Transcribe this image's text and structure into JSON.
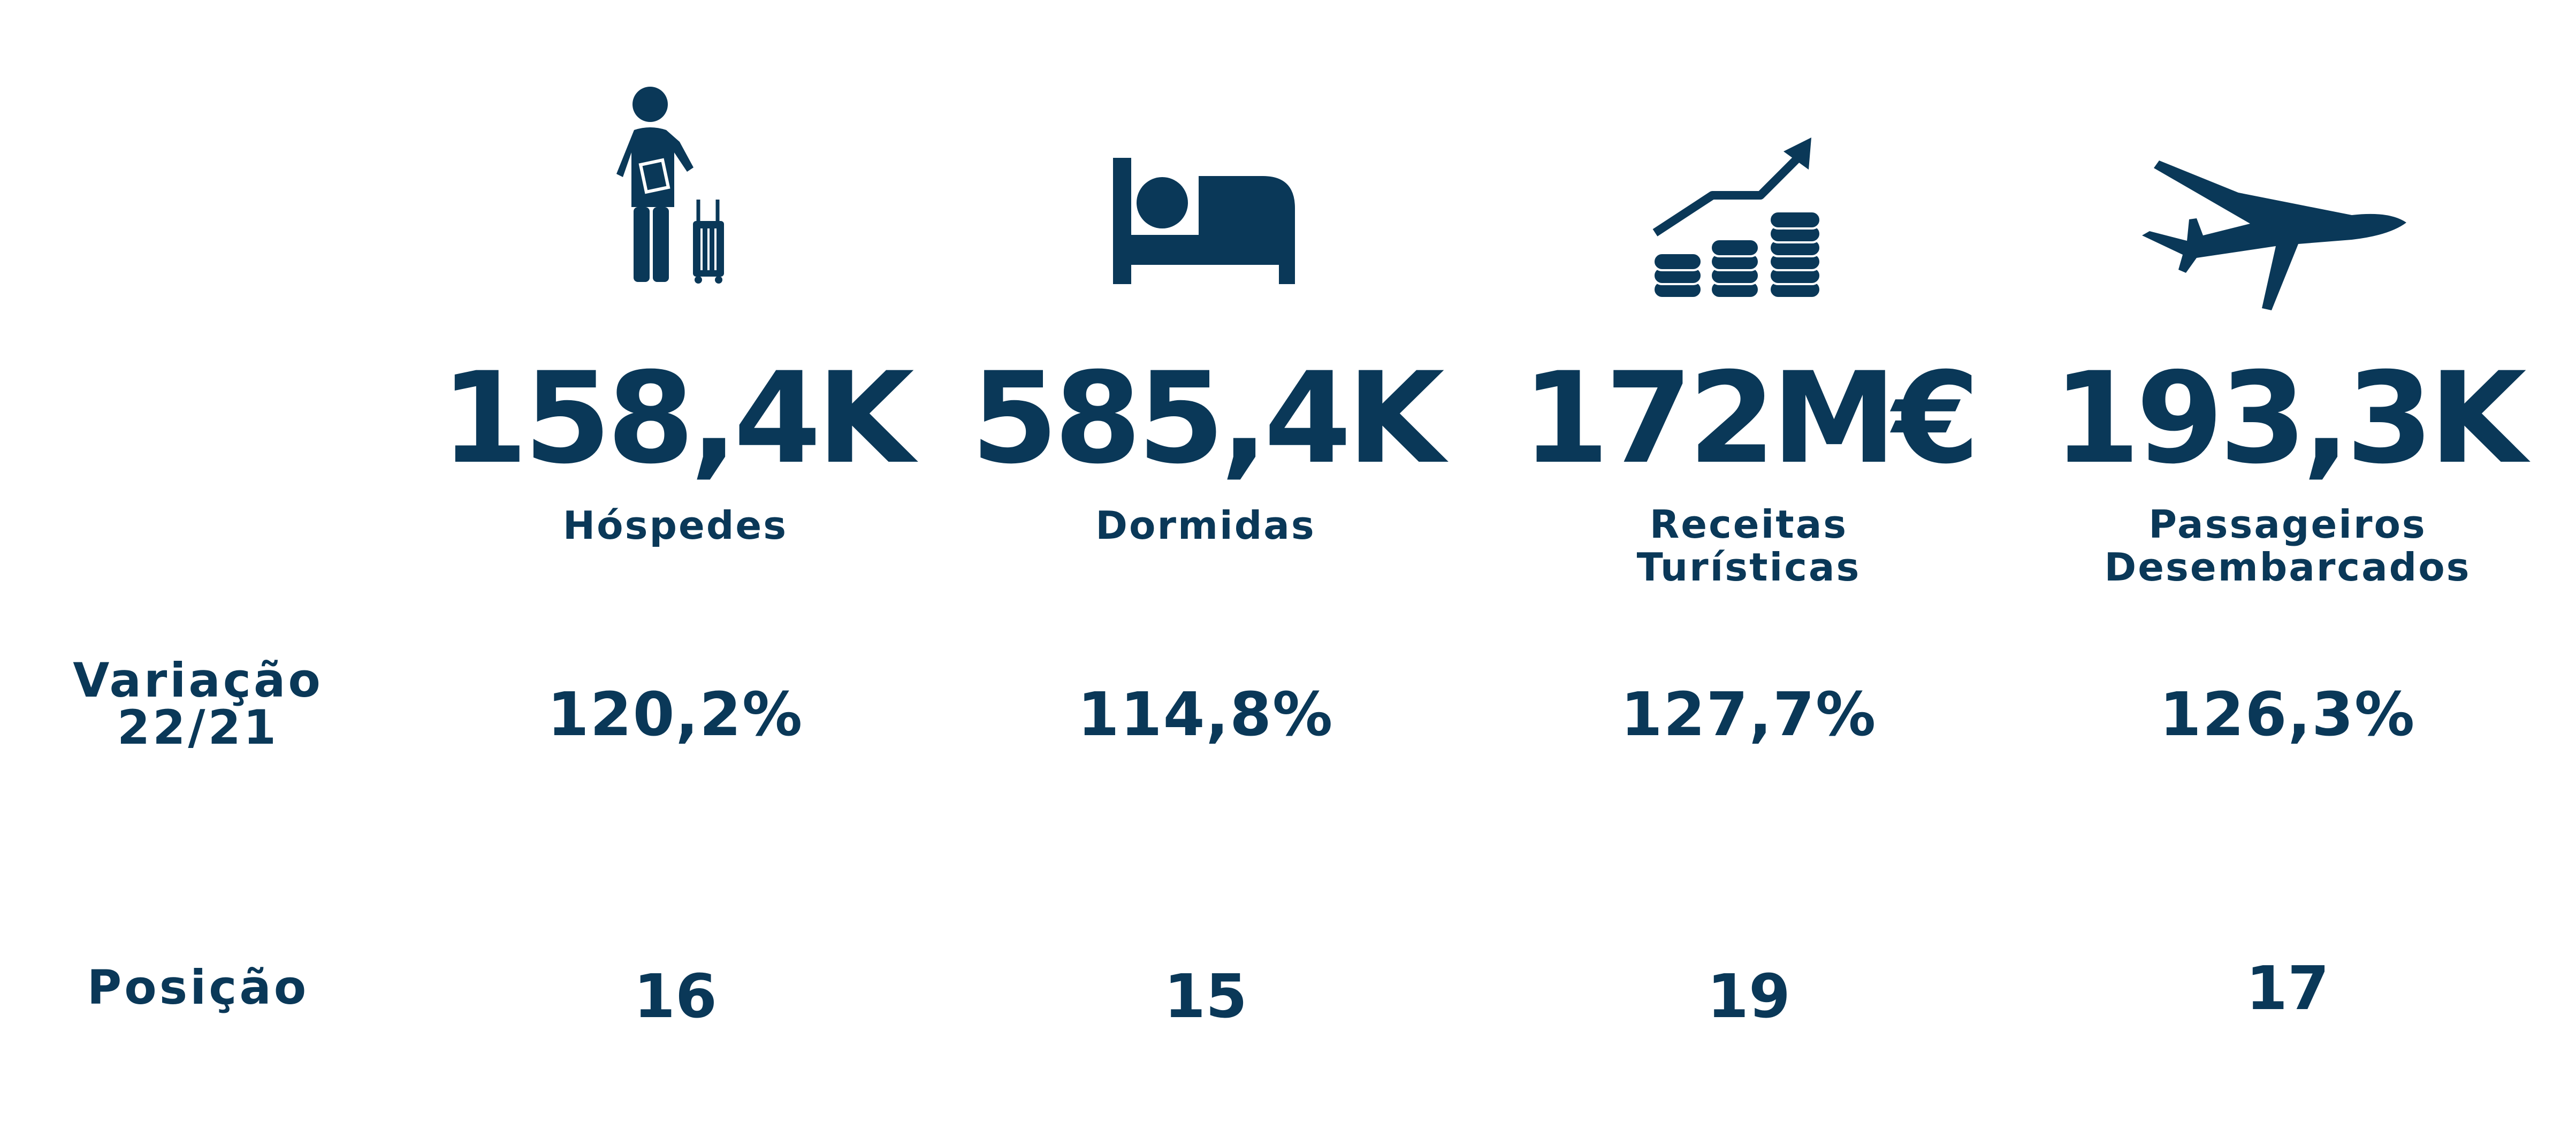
{
  "colors": {
    "primary": "#0a3858",
    "background": "#ffffff"
  },
  "rows": {
    "variation_label_line1": "Variação",
    "variation_label_line2": "22/21",
    "position_label": "Posição"
  },
  "metrics": [
    {
      "icon": "traveler-with-luggage-icon",
      "value": "158,4K",
      "label_line1": "Hóspedes",
      "label_line2": "",
      "variation": "120,2%",
      "position": "16"
    },
    {
      "icon": "bed-icon",
      "value": "585,4K",
      "label_line1": "Dormidas",
      "label_line2": "",
      "variation": "114,8%",
      "position": "15"
    },
    {
      "icon": "coins-growth-chart-icon",
      "value": "172M€",
      "label_line1": "Receitas",
      "label_line2": "Turísticas",
      "variation": "127,7%",
      "position": "19"
    },
    {
      "icon": "airplane-icon",
      "value": "193,3K",
      "label_line1": "Passageiros",
      "label_line2": "Desembarcados",
      "variation": "126,3%",
      "position": "17"
    }
  ]
}
